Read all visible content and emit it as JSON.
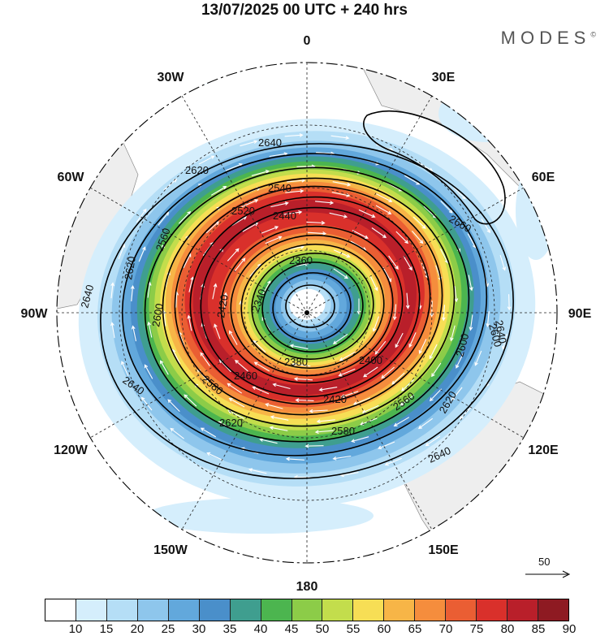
{
  "title": "13/07/2025  00 UTC  + 240 hrs",
  "brand": "MODES",
  "brand_mark": "©",
  "longitude_labels": [
    {
      "lon": 0,
      "text": "0"
    },
    {
      "lon": 30,
      "text": "30E"
    },
    {
      "lon": 60,
      "text": "60E"
    },
    {
      "lon": 90,
      "text": "90E"
    },
    {
      "lon": 120,
      "text": "120E"
    },
    {
      "lon": 150,
      "text": "150E"
    },
    {
      "lon": 180,
      "text": "180"
    },
    {
      "lon": -150,
      "text": "150W"
    },
    {
      "lon": -120,
      "text": "120W"
    },
    {
      "lon": -90,
      "text": "90W"
    },
    {
      "lon": -60,
      "text": "60W"
    },
    {
      "lon": -30,
      "text": "30W"
    }
  ],
  "contour_labels": [
    "2640",
    "2620",
    "2540",
    "2520",
    "2660",
    "2560",
    "2440",
    "2360",
    "2340",
    "2600",
    "2420",
    "2400",
    "2380",
    "2580",
    "2460"
  ],
  "colorbar": {
    "colors": [
      "#ffffff",
      "#d5eefc",
      "#b5def6",
      "#8ec6ec",
      "#62a8dc",
      "#4a8fca",
      "#3f9e8f",
      "#4cb54f",
      "#8ccc48",
      "#c3dd4c",
      "#f7de55",
      "#f7b547",
      "#f58d3d",
      "#ea5e33",
      "#d9302b",
      "#b91f2a",
      "#8e1a22"
    ],
    "tick_labels": [
      "10",
      "15",
      "20",
      "25",
      "30",
      "35",
      "40",
      "45",
      "50",
      "55",
      "60",
      "65",
      "70",
      "75",
      "80",
      "85",
      "90"
    ]
  },
  "reference_vector": "50",
  "colors": {
    "land": "#eeeeee",
    "coast": "#8a8a8a",
    "contour": "#000000",
    "arrows": "#ffffff"
  }
}
